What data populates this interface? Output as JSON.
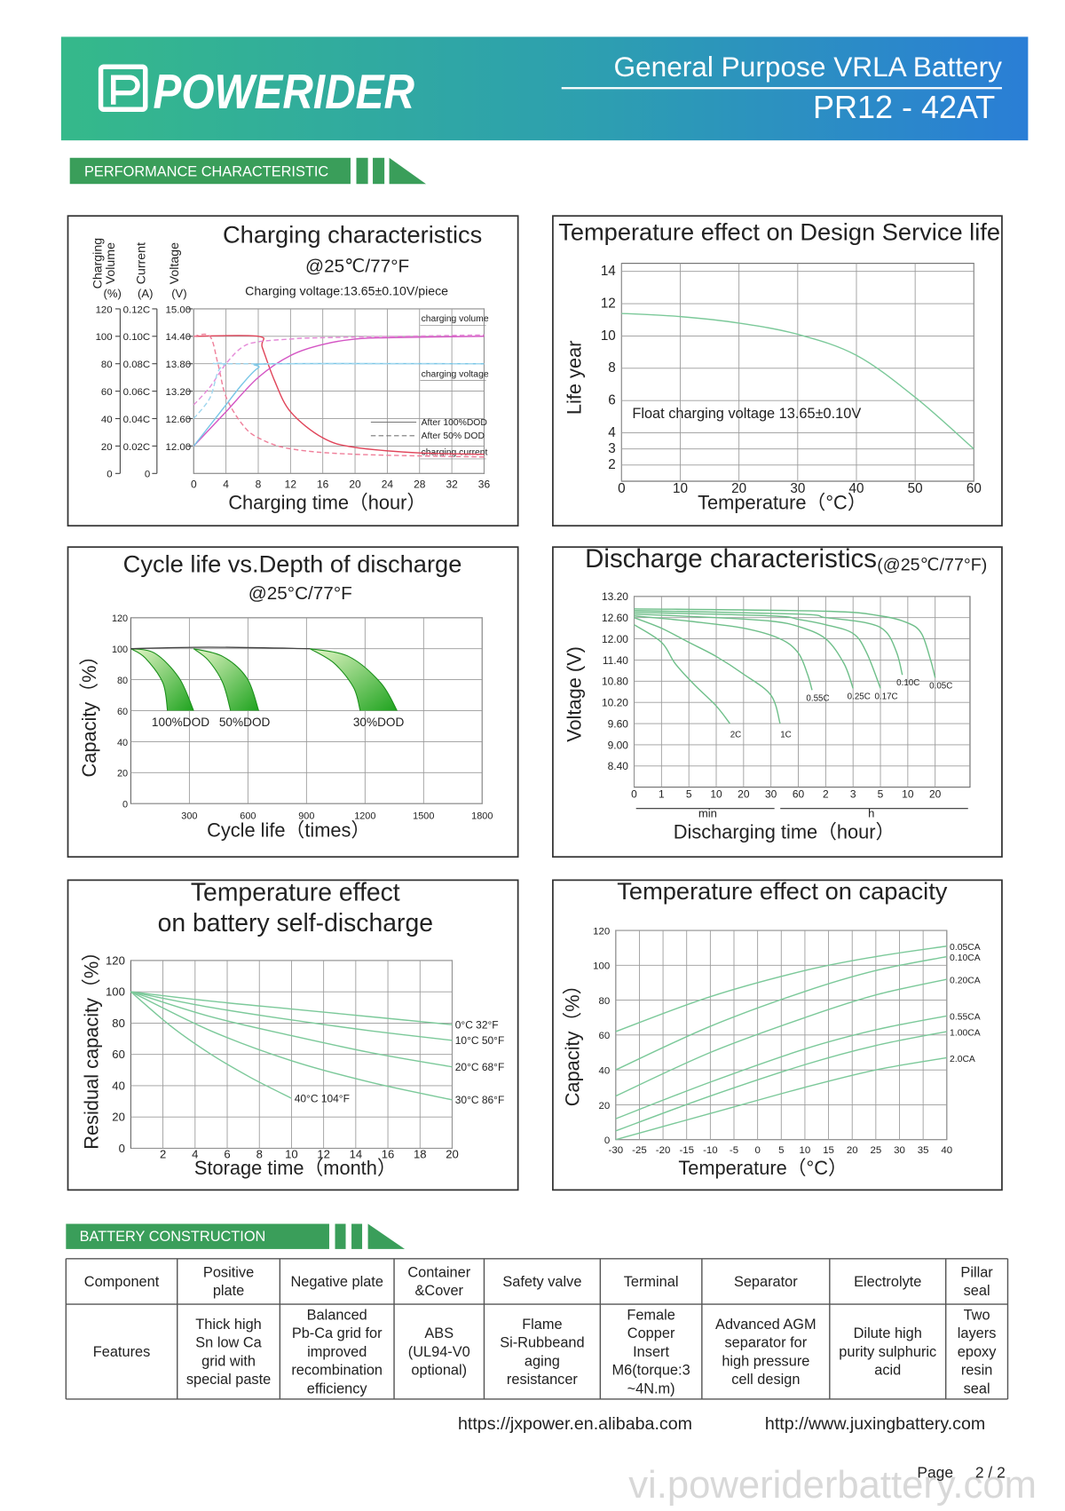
{
  "header": {
    "brand": "POWERIDER",
    "title": "General Purpose  VRLA Battery",
    "model": "PR12 - 42AT"
  },
  "sections": {
    "performance": "PERFORMANCE    CHARACTERISTIC",
    "construction": "BATTERY    CONSTRUCTION"
  },
  "chart_data": [
    {
      "type": "line",
      "title": "Charging characteristics",
      "subtitle": "@25℃/77°F",
      "note": "Charging voltage:13.65±0.10V/piece",
      "axis_titles": [
        {
          "name": [
            "Charging",
            "Volume"
          ],
          "unit": "(%)"
        },
        {
          "name": [
            "Current"
          ],
          "unit": "(A)"
        },
        {
          "name": [
            "Voltage"
          ],
          "unit": "(V)"
        }
      ],
      "x_label": "Charging time（hour）",
      "xlim": [
        0,
        36
      ],
      "xticks": [
        0,
        4,
        8,
        12,
        16,
        20,
        24,
        28,
        32,
        36
      ],
      "ylim": [
        0,
        120
      ],
      "yticks": [
        0,
        20,
        40,
        60,
        80,
        100,
        120
      ],
      "y2lim": [
        0,
        0.12
      ],
      "y2ticks": [
        0,
        {
          "value": 0.02,
          "label": "0.02C"
        },
        {
          "value": 0.04,
          "label": "0.04C"
        },
        {
          "value": 0.06,
          "label": "0.06C"
        },
        {
          "value": 0.08,
          "label": "0.08C"
        },
        {
          "value": 0.1,
          "label": "0.10C"
        },
        {
          "value": 0.12,
          "label": "0.12C"
        }
      ],
      "y3lim": [
        11.4,
        15
      ],
      "y3ticks": [
        {
          "value": 12,
          "label": "12.00"
        },
        {
          "value": 12.6,
          "label": "12.60"
        },
        {
          "value": 13.2,
          "label": "13.20"
        },
        {
          "value": 13.8,
          "label": "13.80"
        },
        {
          "value": 14.4,
          "label": "14.40"
        },
        {
          "value": 15,
          "label": "15.00"
        }
      ],
      "grid": true,
      "annotations": [
        "charging volume",
        "charging voltage",
        "charging current"
      ],
      "legend": [
        {
          "name": "After 100%DOD",
          "dash": false
        },
        {
          "name": "After 50% DOD",
          "dash": true
        }
      ],
      "series": [
        {
          "color": "#e0455a",
          "dash": false,
          "x": [
            0,
            8,
            8.5,
            10,
            12,
            16,
            20,
            28,
            36
          ],
          "values": [
            100,
            100,
            92,
            68,
            45,
            26,
            19,
            15,
            14
          ]
        },
        {
          "color": "#ef7f9a",
          "dash": true,
          "x": [
            0,
            2,
            3,
            4,
            6,
            8,
            12,
            20,
            36
          ],
          "values": [
            100,
            100,
            80,
            56,
            36,
            26,
            18,
            14,
            12
          ]
        },
        {
          "color": "#d455c4",
          "dash": false,
          "x": [
            0,
            4,
            8,
            12,
            16,
            20,
            24,
            36
          ],
          "values": [
            20,
            45,
            70,
            86,
            94,
            98,
            99,
            100
          ]
        },
        {
          "color": "#e58ad8",
          "dash": true,
          "x": [
            0,
            2,
            4,
            6,
            8,
            12,
            16,
            36
          ],
          "values": [
            50,
            63,
            80,
            92,
            96,
            98,
            99,
            101
          ]
        },
        {
          "color": "#79c6e6",
          "dash": false,
          "x": [
            0,
            2,
            4,
            6,
            8,
            10,
            36
          ],
          "values": [
            20,
            35,
            50,
            65,
            77,
            80,
            80
          ]
        },
        {
          "color": "#9fd6ee",
          "dash": true,
          "x": [
            0,
            2,
            3,
            4,
            5,
            36
          ],
          "values": [
            40,
            55,
            74,
            80,
            80,
            80
          ]
        }
      ]
    },
    {
      "type": "line",
      "title": "Temperature effect on Design Service life",
      "annotation": "Float charging voltage  13.65±0.10V",
      "x_label": "Temperature（°C）",
      "y_label": "Life year",
      "xlim": [
        0,
        60
      ],
      "xticks": [
        0,
        10,
        20,
        30,
        40,
        50,
        60
      ],
      "ylim": [
        1,
        14.5
      ],
      "yticks": [
        2,
        3,
        4,
        6,
        8,
        10,
        12,
        14
      ],
      "grid": true,
      "series": [
        {
          "color": "#7cc99a",
          "x": [
            0,
            10,
            20,
            30,
            40,
            50,
            60
          ],
          "values": [
            11.4,
            11.2,
            10.8,
            10.1,
            8.8,
            6.2,
            3.0
          ]
        }
      ]
    },
    {
      "type": "area",
      "title": "Cycle life vs.Depth of discharge",
      "subtitle": "@25°C/77°F",
      "x_label": "Cycle life（times）",
      "y_label": "Capacity（%）",
      "xlim": [
        0,
        1800
      ],
      "xticks": [
        300,
        600,
        900,
        1200,
        1500,
        1800
      ],
      "ylim": [
        0,
        120
      ],
      "yticks": [
        0,
        20,
        40,
        60,
        80,
        100,
        120
      ],
      "grid": true,
      "baseline": {
        "color": "#444444",
        "x": [
          0,
          400,
          918
        ],
        "values": [
          100,
          101,
          100
        ]
      },
      "series": [
        {
          "name": "100%DOD",
          "color": "#1fa51f",
          "x": [
            0,
            124,
            248,
            322
          ],
          "values": [
            100,
            97,
            81,
            60
          ],
          "x_inner": [
            0,
            74,
            164,
            188
          ],
          "values_inner": [
            100,
            94,
            78,
            60
          ]
        },
        {
          "name": "50%DOD",
          "color": "#1fa51f",
          "x": [
            322,
            471,
            595,
            655
          ],
          "values": [
            100,
            95,
            81,
            60
          ],
          "x_inner": [
            322,
            397,
            471,
            511
          ],
          "values_inner": [
            100,
            92.5,
            78,
            60
          ]
        },
        {
          "name": "30%DOD",
          "color": "#1fa51f",
          "x": [
            918,
            1116,
            1280,
            1364
          ],
          "values": [
            100,
            95,
            78,
            60
          ],
          "x_inner": [
            918,
            1042,
            1141,
            1175
          ],
          "values_inner": [
            100,
            90.6,
            75,
            60
          ]
        }
      ]
    },
    {
      "type": "line",
      "title": "Discharge characteristics",
      "subtitle": "(@25℃/77°F)",
      "x_label": "Discharging time（hour）",
      "y_label": "Voltage (V)",
      "x_units": [
        "min",
        "h"
      ],
      "xlim": [
        0,
        1200
      ],
      "xticks": [
        0,
        1,
        5,
        10,
        20,
        30,
        60,
        {
          "value": 120,
          "label": "2"
        },
        {
          "value": 180,
          "label": "3"
        },
        {
          "value": 300,
          "label": "5"
        },
        {
          "value": 600,
          "label": "10"
        },
        {
          "value": 1200,
          "label": "20"
        }
      ],
      "ylim": [
        7.8,
        13.2
      ],
      "yticks": [
        {
          "value": 13.2,
          "label": "13.20"
        },
        {
          "value": 12.6,
          "label": "12.60"
        },
        {
          "value": 12,
          "label": "12.00"
        },
        {
          "value": 11.4,
          "label": "11.40"
        },
        {
          "value": 10.8,
          "label": "10.80"
        },
        {
          "value": 10.2,
          "label": "10.20"
        },
        {
          "value": 9.6,
          "label": "9.60"
        },
        {
          "value": 9,
          "label": "9.00"
        },
        {
          "value": 8.4,
          "label": "8.40"
        }
      ],
      "grid": true,
      "series": [
        {
          "name": "2C",
          "color": "#6fbf8a",
          "x": [
            0,
            1,
            3,
            6,
            10,
            15
          ],
          "values": [
            12.4,
            11.9,
            11.3,
            10.7,
            10.1,
            9.6
          ]
        },
        {
          "name": "1C",
          "color": "#6fbf8a",
          "x": [
            0,
            1,
            5,
            10,
            20,
            30,
            40
          ],
          "values": [
            12.6,
            12.3,
            11.9,
            11.5,
            11.0,
            10.4,
            9.6
          ]
        },
        {
          "name": "0.55C",
          "color": "#6fbf8a",
          "x": [
            0,
            5,
            20,
            40,
            60,
            80,
            90
          ],
          "values": [
            12.65,
            12.5,
            12.3,
            12.0,
            11.6,
            11.0,
            10.55
          ]
        },
        {
          "name": "0.25C",
          "color": "#6fbf8a",
          "x": [
            0,
            10,
            30,
            60,
            120,
            160,
            180
          ],
          "values": [
            12.7,
            12.6,
            12.5,
            12.35,
            12.0,
            11.3,
            10.6
          ]
        },
        {
          "name": "0.17C",
          "color": "#6fbf8a",
          "x": [
            0,
            30,
            60,
            120,
            180,
            240,
            300
          ],
          "values": [
            12.75,
            12.65,
            12.55,
            12.4,
            12.15,
            11.6,
            10.6
          ]
        },
        {
          "name": "0.10C",
          "color": "#6fbf8a",
          "x": [
            0,
            60,
            120,
            240,
            360,
            480,
            540
          ],
          "values": [
            12.8,
            12.7,
            12.6,
            12.45,
            12.2,
            11.6,
            10.98
          ]
        },
        {
          "name": "0.05C",
          "color": "#6fbf8a",
          "x": [
            0,
            120,
            300,
            600,
            900,
            1100,
            1200
          ],
          "values": [
            12.85,
            12.78,
            12.65,
            12.45,
            12.15,
            11.4,
            10.9
          ]
        }
      ]
    },
    {
      "type": "line",
      "title": [
        "Temperature effect",
        "on battery self-discharge"
      ],
      "x_label": "Storage time（month）",
      "y_label": "Residual capacity（%）",
      "xlim": [
        0,
        20
      ],
      "xticks": [
        2,
        4,
        6,
        8,
        10,
        12,
        14,
        16,
        18,
        20
      ],
      "ylim": [
        0,
        120
      ],
      "yticks": [
        0,
        20,
        40,
        60,
        80,
        100,
        120
      ],
      "grid": true,
      "series": [
        {
          "name": "0°C 32°F",
          "color": "#7cc99a",
          "x": [
            0,
            5,
            10,
            15,
            20
          ],
          "values": [
            100,
            94,
            89,
            84,
            79
          ]
        },
        {
          "name": "10°C 50°F",
          "color": "#7cc99a",
          "x": [
            0,
            5,
            10,
            15,
            20
          ],
          "values": [
            100,
            90,
            82,
            75,
            69
          ]
        },
        {
          "name": "20°C 68°F",
          "color": "#7cc99a",
          "x": [
            0,
            5,
            10,
            15,
            20
          ],
          "values": [
            100,
            84,
            72,
            61,
            52
          ]
        },
        {
          "name": "30°C 86°F",
          "color": "#7cc99a",
          "x": [
            0,
            5,
            10,
            15,
            20
          ],
          "values": [
            100,
            75,
            56,
            42,
            31
          ]
        },
        {
          "name": "40°C 104°F",
          "color": "#7cc99a",
          "x": [
            0,
            2.5,
            5,
            7.5,
            10
          ],
          "values": [
            100,
            78,
            60,
            45,
            32
          ]
        }
      ]
    },
    {
      "type": "line",
      "title": "Temperature effect on capacity",
      "x_label": "Temperature（°C）",
      "y_label": "Capacity（%）",
      "xlim": [
        -30,
        40
      ],
      "xticks": [
        -30,
        -25,
        -20,
        -15,
        -10,
        -5,
        0,
        5,
        10,
        15,
        20,
        25,
        30,
        35,
        40
      ],
      "ylim": [
        0,
        120
      ],
      "yticks": [
        0,
        20,
        40,
        60,
        80,
        100,
        120
      ],
      "grid": true,
      "series": [
        {
          "name": "0.05CA",
          "color": "#7cc99a",
          "x": [
            -30,
            -10,
            10,
            25,
            40
          ],
          "values": [
            62,
            82,
            97,
            105,
            111
          ]
        },
        {
          "name": "0.10CA",
          "color": "#7cc99a",
          "x": [
            -30,
            -10,
            10,
            25,
            40
          ],
          "values": [
            40,
            65,
            85,
            97,
            105
          ]
        },
        {
          "name": "0.20CA",
          "color": "#7cc99a",
          "x": [
            -30,
            -10,
            10,
            25,
            40
          ],
          "values": [
            25,
            50,
            70,
            83,
            92
          ]
        },
        {
          "name": "0.55CA",
          "color": "#7cc99a",
          "x": [
            -30,
            -10,
            10,
            25,
            40
          ],
          "values": [
            12,
            33,
            52,
            63,
            71
          ]
        },
        {
          "name": "1.00CA",
          "color": "#7cc99a",
          "x": [
            -30,
            -10,
            10,
            25,
            40
          ],
          "values": [
            5,
            25,
            43,
            54,
            62
          ]
        },
        {
          "name": "2.0CA",
          "color": "#7cc99a",
          "x": [
            -30,
            -10,
            10,
            25,
            40
          ],
          "values": [
            0,
            15,
            30,
            40,
            47
          ]
        }
      ]
    }
  ],
  "table": {
    "header": [
      [
        "Component"
      ],
      [
        "Positive",
        "plate"
      ],
      [
        "Negative plate"
      ],
      [
        "Container",
        "&Cover"
      ],
      [
        "Safety valve"
      ],
      [
        "Terminal"
      ],
      [
        "Separator"
      ],
      [
        "Electrolyte"
      ],
      [
        "Pillar",
        "seal"
      ]
    ],
    "rows": [
      [
        [
          "Features"
        ],
        [
          "Thick high",
          "Sn low Ca",
          "grid with",
          "special paste"
        ],
        [
          "Balanced",
          "Pb-Ca grid for",
          "improved",
          "recombination",
          "efficiency"
        ],
        [
          "ABS",
          "(UL94-V0",
          "optional)"
        ],
        [
          "Flame",
          "Si-Rubbeand",
          "aging",
          "resistancer"
        ],
        [
          "Female",
          "Copper",
          "Insert",
          "M6(torque:3",
          "~4N.m)"
        ],
        [
          "Advanced AGM",
          "separator for",
          "high pressure",
          "cell design"
        ],
        [
          "Dilute high",
          "purity sulphuric",
          "acid"
        ],
        [
          "Two",
          "layers",
          "epoxy",
          "resin",
          "seal"
        ]
      ]
    ]
  },
  "footer": {
    "links": [
      "https://jxpower.en.alibaba.com",
      "http://www.juxingbattery.com"
    ],
    "page_label": "Page",
    "page": "2 / 2",
    "watermark": "vi.poweriderbattery.com"
  }
}
